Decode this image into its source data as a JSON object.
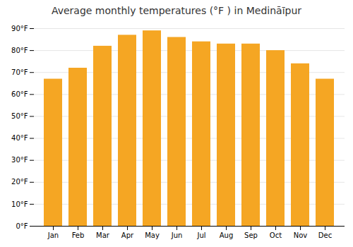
{
  "chart_data": {
    "type": "bar",
    "title": "Average monthly temperatures (°F ) in Medināīpur",
    "categories": [
      "Jan",
      "Feb",
      "Mar",
      "Apr",
      "May",
      "Jun",
      "Jul",
      "Aug",
      "Sep",
      "Oct",
      "Nov",
      "Dec"
    ],
    "values": [
      67,
      72,
      82,
      87,
      89,
      86,
      84,
      83,
      83,
      80,
      74,
      67
    ],
    "color": "#F5A623",
    "ylim": [
      0,
      90
    ],
    "yticks": [
      {
        "value": 0,
        "label": "0°F"
      },
      {
        "value": 10,
        "label": "10°F"
      },
      {
        "value": 20,
        "label": "20°F"
      },
      {
        "value": 30,
        "label": "30°F"
      },
      {
        "value": 40,
        "label": "40°F"
      },
      {
        "value": 50,
        "label": "50°F"
      },
      {
        "value": 60,
        "label": "60°F"
      },
      {
        "value": 70,
        "label": "70°F"
      },
      {
        "value": 80,
        "label": "80°F"
      },
      {
        "value": 90,
        "label": "90°F"
      }
    ],
    "grid": true
  }
}
